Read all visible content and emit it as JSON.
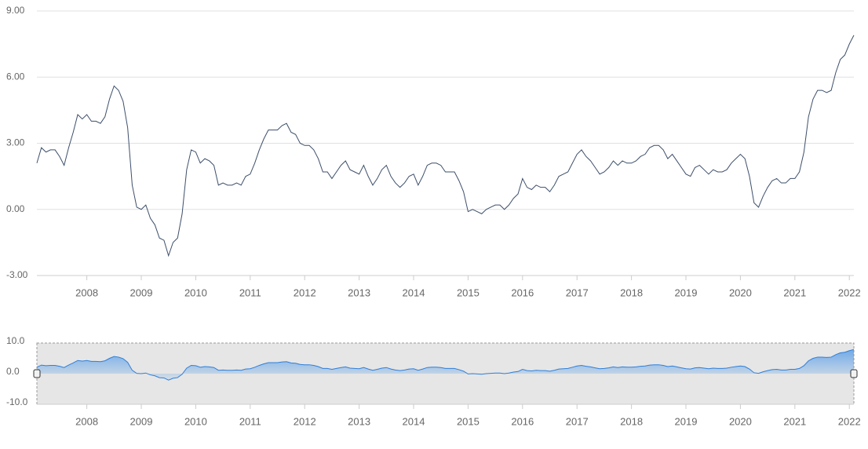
{
  "chart_data": {
    "type": "line",
    "x": [
      "2007-02",
      "2007-03",
      "2007-04",
      "2007-05",
      "2007-06",
      "2007-07",
      "2007-08",
      "2007-09",
      "2007-10",
      "2007-11",
      "2007-12",
      "2008-01",
      "2008-02",
      "2008-03",
      "2008-04",
      "2008-05",
      "2008-06",
      "2008-07",
      "2008-08",
      "2008-09",
      "2008-10",
      "2008-11",
      "2008-12",
      "2009-01",
      "2009-02",
      "2009-03",
      "2009-04",
      "2009-05",
      "2009-06",
      "2009-07",
      "2009-08",
      "2009-09",
      "2009-10",
      "2009-11",
      "2009-12",
      "2010-01",
      "2010-02",
      "2010-03",
      "2010-04",
      "2010-05",
      "2010-06",
      "2010-07",
      "2010-08",
      "2010-09",
      "2010-10",
      "2010-11",
      "2010-12",
      "2011-01",
      "2011-02",
      "2011-03",
      "2011-04",
      "2011-05",
      "2011-06",
      "2011-07",
      "2011-08",
      "2011-09",
      "2011-10",
      "2011-11",
      "2011-12",
      "2012-01",
      "2012-02",
      "2012-03",
      "2012-04",
      "2012-05",
      "2012-06",
      "2012-07",
      "2012-08",
      "2012-09",
      "2012-10",
      "2012-11",
      "2012-12",
      "2013-01",
      "2013-02",
      "2013-03",
      "2013-04",
      "2013-05",
      "2013-06",
      "2013-07",
      "2013-08",
      "2013-09",
      "2013-10",
      "2013-11",
      "2013-12",
      "2014-01",
      "2014-02",
      "2014-03",
      "2014-04",
      "2014-05",
      "2014-06",
      "2014-07",
      "2014-08",
      "2014-09",
      "2014-10",
      "2014-11",
      "2014-12",
      "2015-01",
      "2015-02",
      "2015-03",
      "2015-04",
      "2015-05",
      "2015-06",
      "2015-07",
      "2015-08",
      "2015-09",
      "2015-10",
      "2015-11",
      "2015-12",
      "2016-01",
      "2016-02",
      "2016-03",
      "2016-04",
      "2016-05",
      "2016-06",
      "2016-07",
      "2016-08",
      "2016-09",
      "2016-10",
      "2016-11",
      "2016-12",
      "2017-01",
      "2017-02",
      "2017-03",
      "2017-04",
      "2017-05",
      "2017-06",
      "2017-07",
      "2017-08",
      "2017-09",
      "2017-10",
      "2017-11",
      "2017-12",
      "2018-01",
      "2018-02",
      "2018-03",
      "2018-04",
      "2018-05",
      "2018-06",
      "2018-07",
      "2018-08",
      "2018-09",
      "2018-10",
      "2018-11",
      "2018-12",
      "2019-01",
      "2019-02",
      "2019-03",
      "2019-04",
      "2019-05",
      "2019-06",
      "2019-07",
      "2019-08",
      "2019-09",
      "2019-10",
      "2019-11",
      "2019-12",
      "2020-01",
      "2020-02",
      "2020-03",
      "2020-04",
      "2020-05",
      "2020-06",
      "2020-07",
      "2020-08",
      "2020-09",
      "2020-10",
      "2020-11",
      "2020-12",
      "2021-01",
      "2021-02",
      "2021-03",
      "2021-04",
      "2021-05",
      "2021-06",
      "2021-07",
      "2021-08",
      "2021-09",
      "2021-10",
      "2021-11",
      "2021-12",
      "2022-01",
      "2022-02"
    ],
    "series": [
      {
        "color": "#3d4f6b",
        "values": [
          2.1,
          2.8,
          2.6,
          2.7,
          2.7,
          2.4,
          2.0,
          2.8,
          3.5,
          4.3,
          4.1,
          4.3,
          4.0,
          4.0,
          3.9,
          4.2,
          5.0,
          5.6,
          5.4,
          4.9,
          3.7,
          1.1,
          0.1,
          0.0,
          0.2,
          -0.4,
          -0.7,
          -1.3,
          -1.4,
          -2.1,
          -1.5,
          -1.3,
          -0.2,
          1.8,
          2.7,
          2.6,
          2.1,
          2.3,
          2.2,
          2.0,
          1.1,
          1.2,
          1.1,
          1.1,
          1.2,
          1.1,
          1.5,
          1.6,
          2.1,
          2.7,
          3.2,
          3.6,
          3.6,
          3.6,
          3.8,
          3.9,
          3.5,
          3.4,
          3.0,
          2.9,
          2.9,
          2.7,
          2.3,
          1.7,
          1.7,
          1.4,
          1.7,
          2.0,
          2.2,
          1.8,
          1.7,
          1.6,
          2.0,
          1.5,
          1.1,
          1.4,
          1.8,
          2.0,
          1.5,
          1.2,
          1.0,
          1.2,
          1.5,
          1.6,
          1.1,
          1.5,
          2.0,
          2.1,
          2.1,
          2.0,
          1.7,
          1.7,
          1.7,
          1.3,
          0.8,
          -0.1,
          0.0,
          -0.1,
          -0.2,
          0.0,
          0.1,
          0.2,
          0.2,
          0.0,
          0.2,
          0.5,
          0.7,
          1.4,
          1.0,
          0.9,
          1.1,
          1.0,
          1.0,
          0.8,
          1.1,
          1.5,
          1.6,
          1.7,
          2.1,
          2.5,
          2.7,
          2.4,
          2.2,
          1.9,
          1.6,
          1.7,
          1.9,
          2.2,
          2.0,
          2.2,
          2.1,
          2.1,
          2.2,
          2.4,
          2.5,
          2.8,
          2.9,
          2.9,
          2.7,
          2.3,
          2.5,
          2.2,
          1.9,
          1.6,
          1.5,
          1.9,
          2.0,
          1.8,
          1.6,
          1.8,
          1.7,
          1.7,
          1.8,
          2.1,
          2.3,
          2.5,
          2.3,
          1.5,
          0.3,
          0.1,
          0.6,
          1.0,
          1.3,
          1.4,
          1.2,
          1.2,
          1.4,
          1.4,
          1.7,
          2.6,
          4.2,
          5.0,
          5.4,
          5.4,
          5.3,
          5.4,
          6.2,
          6.8,
          7.0,
          7.5,
          7.9
        ]
      }
    ],
    "ylim": [
      -3,
      9
    ],
    "yticks": [
      {
        "value": -3,
        "label": "-3.00"
      },
      {
        "value": 0,
        "label": "0.00"
      },
      {
        "value": 3,
        "label": "3.00"
      },
      {
        "value": 6,
        "label": "6.00"
      },
      {
        "value": 9,
        "label": "9.00"
      }
    ],
    "xticks": [
      "2008",
      "2009",
      "2010",
      "2011",
      "2012",
      "2013",
      "2014",
      "2015",
      "2016",
      "2017",
      "2018",
      "2019",
      "2020",
      "2021",
      "2022"
    ],
    "grid": true,
    "navigator": {
      "color": "#2f7ed8",
      "ylim": [
        -10,
        10
      ],
      "yticks": [
        {
          "value": -10,
          "label": "-10.0"
        },
        {
          "value": 0,
          "label": "0.0"
        },
        {
          "value": 10,
          "label": "10.0"
        }
      ]
    }
  }
}
